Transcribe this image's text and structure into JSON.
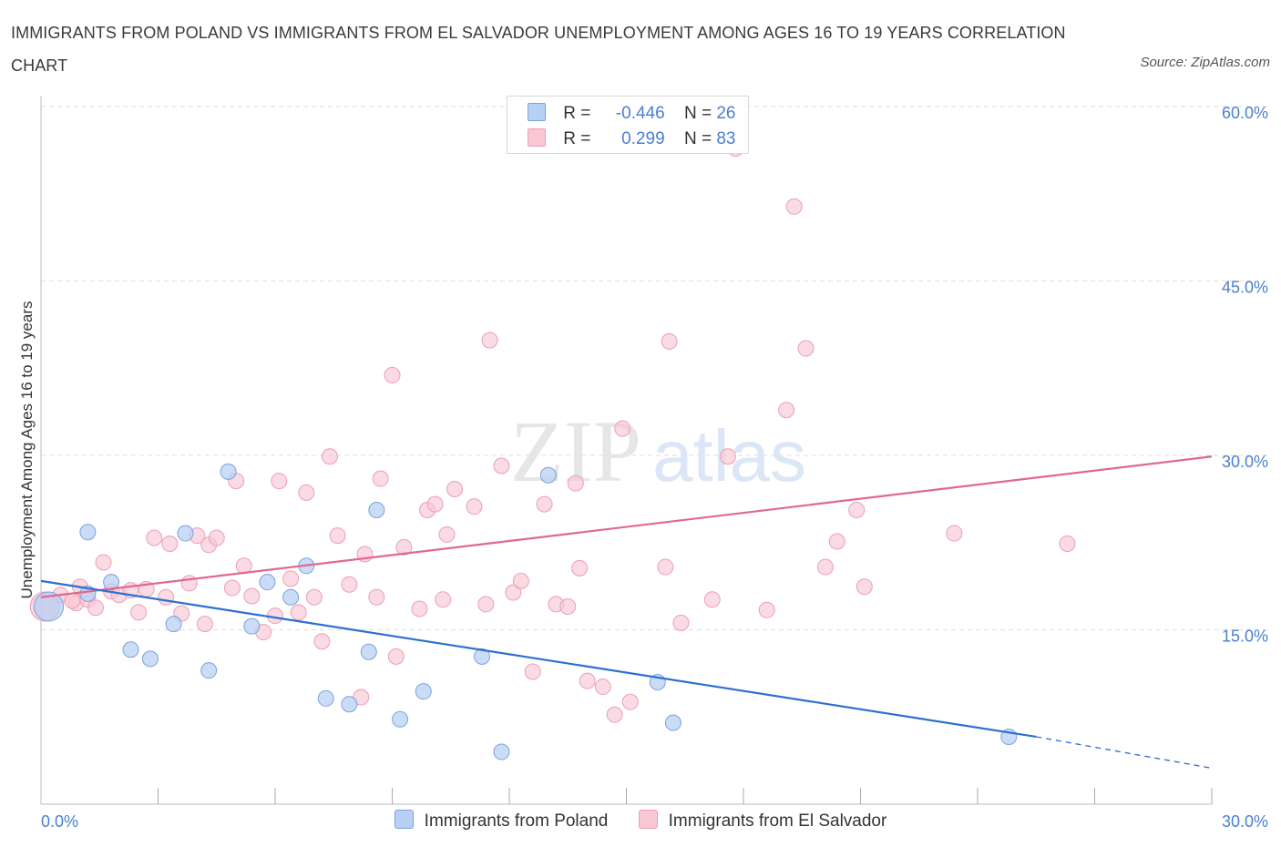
{
  "header": {
    "title": "IMMIGRANTS FROM POLAND VS IMMIGRANTS FROM EL SALVADOR UNEMPLOYMENT AMONG AGES 16 TO 19 YEARS CORRELATION CHART",
    "source": "Source: ZipAtlas.com"
  },
  "watermark": {
    "zip": "ZIP",
    "atlas": "atlas"
  },
  "legend_top": {
    "rows": [
      {
        "r_label": "R =",
        "r_value": "-0.446",
        "n_label": "N =",
        "n_value": "26"
      },
      {
        "r_label": "R =",
        "r_value": "0.299",
        "n_label": "N =",
        "n_value": "83"
      }
    ]
  },
  "legend_bottom": {
    "items": [
      {
        "label": "Immigrants from Poland"
      },
      {
        "label": "Immigrants from El Salvador"
      }
    ]
  },
  "colors": {
    "poland_fill": "#b8d0f3",
    "poland_stroke": "#7aa3df",
    "poland_line": "#2d6fd1",
    "salvador_fill": "#f8c6d4",
    "salvador_stroke": "#eba0b7",
    "salvador_line": "#e06890",
    "grid": "#dedede",
    "tick_label": "#4a7fd0"
  },
  "chart_data": {
    "type": "scatter",
    "title": "IMMIGRANTS FROM POLAND VS IMMIGRANTS FROM EL SALVADOR UNEMPLOYMENT AMONG AGES 16 TO 19 YEARS CORRELATION CHART",
    "xlabel": "",
    "ylabel": "Unemployment Among Ages 16 to 19 years",
    "xlim": [
      0,
      30
    ],
    "ylim": [
      0,
      60
    ],
    "x_ticks_labeled": [
      "0.0%",
      "30.0%"
    ],
    "y_ticks": [
      {
        "value": 15,
        "label": "15.0%"
      },
      {
        "value": 30,
        "label": "30.0%"
      },
      {
        "value": 45,
        "label": "45.0%"
      },
      {
        "value": 60,
        "label": "60.0%"
      }
    ],
    "series": [
      {
        "name": "Immigrants from Poland",
        "r": -0.446,
        "n": 26,
        "trend": {
          "x0": 0,
          "y0": 19.2,
          "x1": 25.5,
          "y1": 5.8,
          "x_end": 30,
          "y_end": 3.1
        },
        "points": [
          {
            "x": 0.2,
            "y": 17.0,
            "big": true
          },
          {
            "x": 1.2,
            "y": 18.1
          },
          {
            "x": 1.2,
            "y": 23.4
          },
          {
            "x": 1.8,
            "y": 19.1
          },
          {
            "x": 2.3,
            "y": 13.3
          },
          {
            "x": 2.8,
            "y": 12.5
          },
          {
            "x": 3.4,
            "y": 15.5
          },
          {
            "x": 3.7,
            "y": 23.3
          },
          {
            "x": 4.3,
            "y": 11.5
          },
          {
            "x": 4.8,
            "y": 28.6
          },
          {
            "x": 5.4,
            "y": 15.3
          },
          {
            "x": 5.8,
            "y": 19.1
          },
          {
            "x": 6.4,
            "y": 17.8
          },
          {
            "x": 6.8,
            "y": 20.5
          },
          {
            "x": 7.3,
            "y": 9.1
          },
          {
            "x": 7.9,
            "y": 8.6
          },
          {
            "x": 8.4,
            "y": 13.1
          },
          {
            "x": 8.6,
            "y": 25.3
          },
          {
            "x": 9.2,
            "y": 7.3
          },
          {
            "x": 9.8,
            "y": 9.7
          },
          {
            "x": 11.3,
            "y": 12.7
          },
          {
            "x": 11.8,
            "y": 4.5
          },
          {
            "x": 13.0,
            "y": 28.3
          },
          {
            "x": 15.8,
            "y": 10.5
          },
          {
            "x": 16.2,
            "y": 7.0
          },
          {
            "x": 24.8,
            "y": 5.8
          }
        ]
      },
      {
        "name": "Immigrants from El Salvador",
        "r": 0.299,
        "n": 83,
        "trend": {
          "x0": 0,
          "y0": 17.8,
          "x1": 30,
          "y1": 29.9
        },
        "points": [
          {
            "x": 0.1,
            "y": 17.0,
            "big": true
          },
          {
            "x": 0.5,
            "y": 18.0
          },
          {
            "x": 0.9,
            "y": 17.3
          },
          {
            "x": 1.0,
            "y": 18.7
          },
          {
            "x": 1.2,
            "y": 17.6
          },
          {
            "x": 1.6,
            "y": 20.8
          },
          {
            "x": 1.8,
            "y": 18.3
          },
          {
            "x": 2.0,
            "y": 18.0
          },
          {
            "x": 2.3,
            "y": 18.4
          },
          {
            "x": 2.5,
            "y": 16.5
          },
          {
            "x": 2.7,
            "y": 18.5
          },
          {
            "x": 2.9,
            "y": 22.9
          },
          {
            "x": 3.2,
            "y": 17.8
          },
          {
            "x": 3.3,
            "y": 22.4
          },
          {
            "x": 3.6,
            "y": 16.4
          },
          {
            "x": 3.8,
            "y": 19.0
          },
          {
            "x": 4.0,
            "y": 23.1
          },
          {
            "x": 4.2,
            "y": 15.5
          },
          {
            "x": 4.3,
            "y": 22.3
          },
          {
            "x": 4.5,
            "y": 22.9
          },
          {
            "x": 4.9,
            "y": 18.6
          },
          {
            "x": 5.0,
            "y": 27.8
          },
          {
            "x": 5.2,
            "y": 20.5
          },
          {
            "x": 5.4,
            "y": 17.9
          },
          {
            "x": 5.7,
            "y": 14.8
          },
          {
            "x": 6.0,
            "y": 16.2
          },
          {
            "x": 6.1,
            "y": 27.8
          },
          {
            "x": 6.4,
            "y": 19.4
          },
          {
            "x": 6.6,
            "y": 16.5
          },
          {
            "x": 6.8,
            "y": 26.8
          },
          {
            "x": 7.0,
            "y": 17.8
          },
          {
            "x": 7.2,
            "y": 14.0
          },
          {
            "x": 7.4,
            "y": 29.9
          },
          {
            "x": 7.6,
            "y": 23.1
          },
          {
            "x": 7.9,
            "y": 18.9
          },
          {
            "x": 8.2,
            "y": 9.2
          },
          {
            "x": 8.3,
            "y": 21.5
          },
          {
            "x": 8.6,
            "y": 17.8
          },
          {
            "x": 8.7,
            "y": 28.0
          },
          {
            "x": 9.0,
            "y": 36.9
          },
          {
            "x": 9.1,
            "y": 12.7
          },
          {
            "x": 9.3,
            "y": 22.1
          },
          {
            "x": 9.7,
            "y": 16.8
          },
          {
            "x": 9.9,
            "y": 25.3
          },
          {
            "x": 10.1,
            "y": 25.8
          },
          {
            "x": 10.3,
            "y": 17.6
          },
          {
            "x": 10.4,
            "y": 23.2
          },
          {
            "x": 10.6,
            "y": 27.1
          },
          {
            "x": 11.1,
            "y": 25.6
          },
          {
            "x": 11.4,
            "y": 17.2
          },
          {
            "x": 11.5,
            "y": 39.9
          },
          {
            "x": 11.8,
            "y": 29.1
          },
          {
            "x": 12.1,
            "y": 18.2
          },
          {
            "x": 12.3,
            "y": 19.2
          },
          {
            "x": 12.6,
            "y": 11.4
          },
          {
            "x": 12.9,
            "y": 25.8
          },
          {
            "x": 13.2,
            "y": 17.2
          },
          {
            "x": 13.5,
            "y": 17.0
          },
          {
            "x": 13.7,
            "y": 27.6
          },
          {
            "x": 13.8,
            "y": 20.3
          },
          {
            "x": 14.0,
            "y": 10.6
          },
          {
            "x": 14.4,
            "y": 10.1
          },
          {
            "x": 14.7,
            "y": 7.7
          },
          {
            "x": 14.9,
            "y": 32.3
          },
          {
            "x": 15.1,
            "y": 8.8
          },
          {
            "x": 16.0,
            "y": 20.4
          },
          {
            "x": 16.1,
            "y": 39.8
          },
          {
            "x": 16.4,
            "y": 15.6
          },
          {
            "x": 17.2,
            "y": 17.6
          },
          {
            "x": 17.6,
            "y": 29.9
          },
          {
            "x": 17.8,
            "y": 56.4
          },
          {
            "x": 18.6,
            "y": 16.7
          },
          {
            "x": 19.1,
            "y": 33.9
          },
          {
            "x": 19.3,
            "y": 51.4
          },
          {
            "x": 19.6,
            "y": 39.2
          },
          {
            "x": 20.1,
            "y": 20.4
          },
          {
            "x": 20.4,
            "y": 22.6
          },
          {
            "x": 20.9,
            "y": 25.3
          },
          {
            "x": 21.1,
            "y": 18.7
          },
          {
            "x": 23.4,
            "y": 23.3
          },
          {
            "x": 26.3,
            "y": 22.4
          },
          {
            "x": 1.4,
            "y": 16.9
          },
          {
            "x": 0.8,
            "y": 17.5
          }
        ]
      }
    ]
  }
}
